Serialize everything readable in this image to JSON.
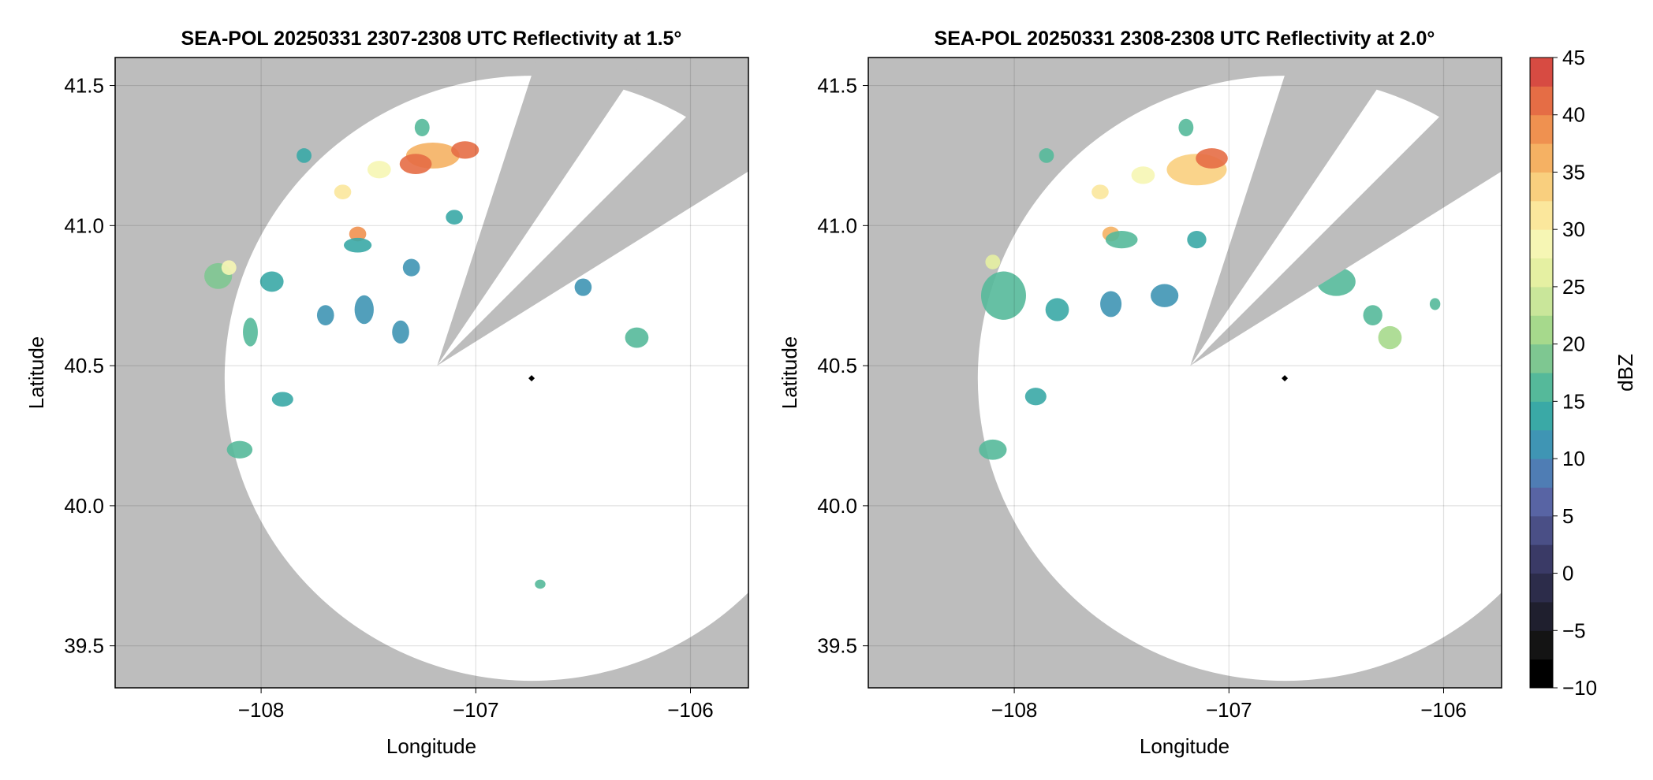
{
  "colorbar": {
    "label": "dBZ",
    "min": -10,
    "max": 45,
    "step": 2.5,
    "ticks": [
      45,
      40,
      35,
      30,
      25,
      20,
      15,
      10,
      5,
      0,
      -5,
      -10
    ],
    "tick_labels": [
      "45",
      "40",
      "35",
      "30",
      "25",
      "20",
      "15",
      "10",
      "5",
      "0",
      "−5",
      "−10"
    ],
    "colors": [
      "#000000",
      "#141414",
      "#1f1f2e",
      "#2c2c4a",
      "#3a3a66",
      "#4a4f86",
      "#5864a4",
      "#4f7db4",
      "#3f95b4",
      "#3aa9a6",
      "#55b99a",
      "#7ec791",
      "#a6d98c",
      "#c9e69a",
      "#e5f0a2",
      "#f6f6b4",
      "#fbe79c",
      "#f9cf7e",
      "#f5b163",
      "#ef9150",
      "#e56d45",
      "#d74b42",
      "#c42a45",
      "#b31552",
      "#c8207a",
      "#df4a9c",
      "#ec7fb8",
      "#efa8cf",
      "#d39ac8",
      "#b07ab5",
      "#8b5b9c",
      "#6a3b86",
      "#4e1f6e",
      "#3a0c5a",
      "#2a0546"
    ]
  },
  "chart_data": [
    {
      "type": "heatmap",
      "title": "SEA-POL 20250331 2307-2308 UTC Reflectivity at 1.5°",
      "xlabel": "Longitude",
      "ylabel": "Latitude",
      "xlim": [
        -108.68,
        -105.73
      ],
      "ylim": [
        39.35,
        41.6
      ],
      "xticks": [
        -108,
        -107,
        -106
      ],
      "xtick_labels": [
        "−108",
        "−107",
        "−106"
      ],
      "yticks": [
        39.5,
        40.0,
        40.5,
        41.0,
        41.5
      ],
      "ytick_labels": [
        "39.5",
        "40.0",
        "40.5",
        "41.0",
        "41.5"
      ],
      "grid": true,
      "radar_site": {
        "lon": -106.74,
        "lat": 40.455
      },
      "coverage_radius_lon": 1.43,
      "coverage_radius_lat": 1.08,
      "blocked_sectors_deg": [
        [
          18,
          34
        ],
        [
          45,
          58
        ]
      ],
      "echoes": [
        {
          "lon": -107.2,
          "lat": 41.25,
          "w": 0.22,
          "h": 0.07,
          "dbz": 36
        },
        {
          "lon": -107.28,
          "lat": 41.22,
          "w": 0.12,
          "h": 0.05,
          "dbz": 42
        },
        {
          "lon": -107.05,
          "lat": 41.27,
          "w": 0.1,
          "h": 0.04,
          "dbz": 40
        },
        {
          "lon": -107.45,
          "lat": 41.2,
          "w": 0.08,
          "h": 0.04,
          "dbz": 28
        },
        {
          "lon": -107.62,
          "lat": 41.12,
          "w": 0.05,
          "h": 0.03,
          "dbz": 30
        },
        {
          "lon": -107.55,
          "lat": 40.97,
          "w": 0.05,
          "h": 0.03,
          "dbz": 38
        },
        {
          "lon": -107.55,
          "lat": 40.93,
          "w": 0.1,
          "h": 0.03,
          "dbz": 14
        },
        {
          "lon": -108.2,
          "lat": 40.82,
          "w": 0.1,
          "h": 0.07,
          "dbz": 18
        },
        {
          "lon": -108.15,
          "lat": 40.85,
          "w": 0.04,
          "h": 0.03,
          "dbz": 28
        },
        {
          "lon": -107.95,
          "lat": 40.8,
          "w": 0.08,
          "h": 0.05,
          "dbz": 13
        },
        {
          "lon": -108.05,
          "lat": 40.62,
          "w": 0.04,
          "h": 0.08,
          "dbz": 15
        },
        {
          "lon": -107.52,
          "lat": 40.7,
          "w": 0.06,
          "h": 0.08,
          "dbz": 10
        },
        {
          "lon": -107.35,
          "lat": 40.62,
          "w": 0.05,
          "h": 0.06,
          "dbz": 11
        },
        {
          "lon": -107.7,
          "lat": 40.68,
          "w": 0.05,
          "h": 0.05,
          "dbz": 12
        },
        {
          "lon": -107.3,
          "lat": 40.85,
          "w": 0.05,
          "h": 0.04,
          "dbz": 12
        },
        {
          "lon": -107.25,
          "lat": 41.35,
          "w": 0.04,
          "h": 0.04,
          "dbz": 15
        },
        {
          "lon": -107.8,
          "lat": 41.25,
          "w": 0.04,
          "h": 0.03,
          "dbz": 14
        },
        {
          "lon": -106.5,
          "lat": 40.78,
          "w": 0.05,
          "h": 0.04,
          "dbz": 12
        },
        {
          "lon": -106.25,
          "lat": 40.6,
          "w": 0.08,
          "h": 0.05,
          "dbz": 15
        },
        {
          "lon": -107.9,
          "lat": 40.38,
          "w": 0.07,
          "h": 0.03,
          "dbz": 13
        },
        {
          "lon": -108.1,
          "lat": 40.2,
          "w": 0.09,
          "h": 0.04,
          "dbz": 16
        },
        {
          "lon": -106.7,
          "lat": 39.72,
          "w": 0.02,
          "h": 0.01,
          "dbz": 16
        },
        {
          "lon": -107.1,
          "lat": 41.03,
          "w": 0.05,
          "h": 0.03,
          "dbz": 14
        }
      ]
    },
    {
      "type": "heatmap",
      "title": "SEA-POL 20250331 2308-2308 UTC Reflectivity at 2.0°",
      "xlabel": "Longitude",
      "ylabel": "Latitude",
      "xlim": [
        -108.68,
        -105.73
      ],
      "ylim": [
        39.35,
        41.6
      ],
      "xticks": [
        -108,
        -107,
        -106
      ],
      "xtick_labels": [
        "−108",
        "−107",
        "−106"
      ],
      "yticks": [
        39.5,
        40.0,
        40.5,
        41.0,
        41.5
      ],
      "ytick_labels": [
        "39.5",
        "40.0",
        "40.5",
        "41.0",
        "41.5"
      ],
      "grid": true,
      "radar_site": {
        "lon": -106.74,
        "lat": 40.455
      },
      "coverage_radius_lon": 1.43,
      "coverage_radius_lat": 1.08,
      "blocked_sectors_deg": [
        [
          18,
          34
        ],
        [
          45,
          58
        ]
      ],
      "echoes": [
        {
          "lon": -107.15,
          "lat": 41.2,
          "w": 0.25,
          "h": 0.09,
          "dbz": 34
        },
        {
          "lon": -107.08,
          "lat": 41.24,
          "w": 0.12,
          "h": 0.05,
          "dbz": 42
        },
        {
          "lon": -107.4,
          "lat": 41.18,
          "w": 0.08,
          "h": 0.04,
          "dbz": 28
        },
        {
          "lon": -107.6,
          "lat": 41.12,
          "w": 0.05,
          "h": 0.03,
          "dbz": 30
        },
        {
          "lon": -107.55,
          "lat": 40.97,
          "w": 0.05,
          "h": 0.03,
          "dbz": 36
        },
        {
          "lon": -107.5,
          "lat": 40.95,
          "w": 0.12,
          "h": 0.04,
          "dbz": 15
        },
        {
          "lon": -108.05,
          "lat": 40.75,
          "w": 0.18,
          "h": 0.15,
          "dbz": 16
        },
        {
          "lon": -108.1,
          "lat": 40.87,
          "w": 0.04,
          "h": 0.03,
          "dbz": 27
        },
        {
          "lon": -107.8,
          "lat": 40.7,
          "w": 0.08,
          "h": 0.06,
          "dbz": 14
        },
        {
          "lon": -107.55,
          "lat": 40.72,
          "w": 0.07,
          "h": 0.07,
          "dbz": 12
        },
        {
          "lon": -107.3,
          "lat": 40.75,
          "w": 0.1,
          "h": 0.06,
          "dbz": 12
        },
        {
          "lon": -107.15,
          "lat": 40.95,
          "w": 0.06,
          "h": 0.04,
          "dbz": 14
        },
        {
          "lon": -106.5,
          "lat": 40.8,
          "w": 0.15,
          "h": 0.08,
          "dbz": 15
        },
        {
          "lon": -106.25,
          "lat": 40.6,
          "w": 0.08,
          "h": 0.06,
          "dbz": 20
        },
        {
          "lon": -106.33,
          "lat": 40.68,
          "w": 0.06,
          "h": 0.05,
          "dbz": 15
        },
        {
          "lon": -107.9,
          "lat": 40.39,
          "w": 0.07,
          "h": 0.04,
          "dbz": 14
        },
        {
          "lon": -108.1,
          "lat": 40.2,
          "w": 0.1,
          "h": 0.05,
          "dbz": 16
        },
        {
          "lon": -107.85,
          "lat": 41.25,
          "w": 0.04,
          "h": 0.03,
          "dbz": 15
        },
        {
          "lon": -107.2,
          "lat": 41.35,
          "w": 0.04,
          "h": 0.04,
          "dbz": 15
        },
        {
          "lon": -106.04,
          "lat": 40.72,
          "w": 0.02,
          "h": 0.02,
          "dbz": 16
        }
      ]
    }
  ]
}
